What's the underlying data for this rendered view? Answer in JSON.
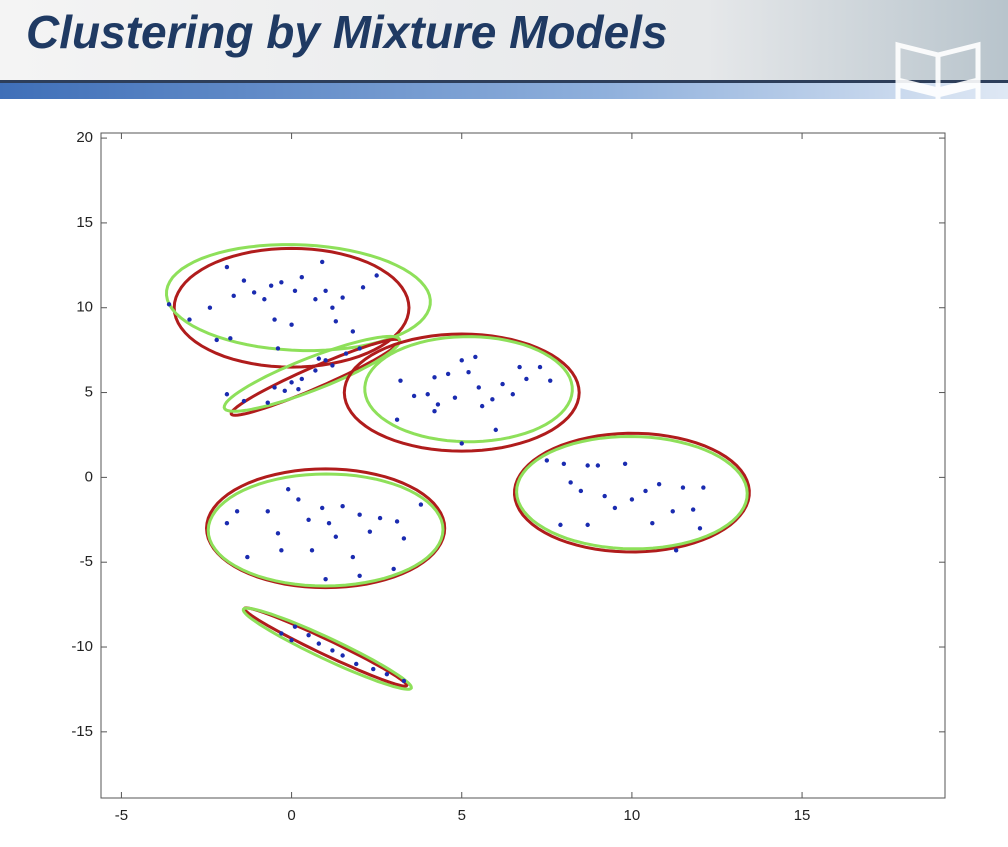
{
  "header": {
    "title": "Clustering by Mixture Models"
  },
  "chart_data": {
    "type": "scatter",
    "xlim": [
      -5.6,
      19.2
    ],
    "ylim": [
      -18.9,
      20.3
    ],
    "xticks": [
      -5,
      0,
      5,
      10,
      15
    ],
    "yticks": [
      -15,
      -10,
      -5,
      0,
      5,
      10,
      15,
      20
    ],
    "color": "#1a2bb0",
    "x": [
      -3.6,
      -3,
      -2.4,
      -1.9,
      -1.7,
      -1.4,
      -1.1,
      -0.8,
      -0.6,
      -0.5,
      -0.3,
      0,
      0.1,
      0.3,
      0.7,
      0.9,
      1,
      1.2,
      1.3,
      1.5,
      1.8,
      2.1,
      2.5,
      -2.2,
      -1.8,
      -0.4,
      -1.9,
      -1.4,
      -0.7,
      -0.5,
      -0.2,
      0,
      0.2,
      0.3,
      0.7,
      0.8,
      1,
      1.2,
      1.6,
      2,
      3.1,
      3.2,
      3.6,
      4,
      4.2,
      4.2,
      4.3,
      4.6,
      4.8,
      5,
      5.2,
      5.4,
      5.5,
      5.6,
      5.9,
      6,
      6.2,
      6.5,
      6.7,
      6.9,
      7.3,
      7.6,
      5,
      7.5,
      8,
      8.2,
      8.5,
      8.7,
      8.7,
      9,
      9.2,
      9.5,
      9.8,
      10,
      10.4,
      10.6,
      10.8,
      11.2,
      11.3,
      11.5,
      11.8,
      12,
      12.1,
      7.9,
      -1.9,
      -1.6,
      -1.3,
      -0.7,
      -0.4,
      -0.3,
      -0.1,
      0.2,
      0.5,
      0.6,
      0.9,
      1.1,
      1.3,
      1.5,
      1.8,
      2,
      2.3,
      2.6,
      3.1,
      3.3,
      1,
      2,
      3,
      3.8,
      -0.3,
      0,
      0.1,
      0.5,
      0.8,
      1.2,
      1.5,
      1.9,
      2.4,
      2.8,
      3.3
    ],
    "values": [
      10.2,
      9.3,
      10,
      12.4,
      10.7,
      11.6,
      10.9,
      10.5,
      11.3,
      9.3,
      11.5,
      9,
      11,
      11.8,
      10.5,
      12.7,
      11,
      10,
      9.2,
      10.6,
      8.6,
      11.2,
      11.9,
      8.1,
      8.2,
      7.6,
      4.9,
      4.5,
      4.4,
      5.3,
      5.1,
      5.6,
      5.2,
      5.8,
      6.3,
      7,
      6.9,
      6.6,
      7.3,
      7.6,
      3.4,
      5.7,
      4.8,
      4.9,
      5.9,
      3.9,
      4.3,
      6.1,
      4.7,
      6.9,
      6.2,
      7.1,
      5.3,
      4.2,
      4.6,
      2.8,
      5.5,
      4.9,
      6.5,
      5.8,
      6.5,
      5.7,
      2,
      1,
      0.8,
      -0.3,
      -0.8,
      0.7,
      -2.8,
      0.7,
      -1.1,
      -1.8,
      0.8,
      -1.3,
      -0.8,
      -2.7,
      -0.4,
      -2,
      -4.3,
      -0.6,
      -1.9,
      -3,
      -0.6,
      -2.8,
      -2.7,
      -2,
      -4.7,
      -2,
      -3.3,
      -4.3,
      -0.7,
      -1.3,
      -2.5,
      -4.3,
      -1.8,
      -2.7,
      -3.5,
      -1.7,
      -4.7,
      -2.2,
      -3.2,
      -2.4,
      -2.6,
      -3.6,
      -6,
      -5.8,
      -5.4,
      -1.6,
      -9.2,
      -9.6,
      -8.8,
      -9.3,
      -9.8,
      -10.2,
      -10.5,
      -11,
      -11.3,
      -11.6,
      -12
    ],
    "ellipses": [
      {
        "color": "#b01c1c",
        "cx": 0,
        "cy": 10,
        "rx": 3.45,
        "ry": 3.5,
        "angle": 0
      },
      {
        "color": "#8ee05a",
        "cx": 0.2,
        "cy": 10.6,
        "rx": 3.9,
        "ry": 3.1,
        "angle": -10
      },
      {
        "color": "#b01c1c",
        "cx": 0.7,
        "cy": 5.9,
        "rx": 3.3,
        "ry": 0.5,
        "angle": 42
      },
      {
        "color": "#8ee05a",
        "cx": 0.6,
        "cy": 6.1,
        "rx": 3.3,
        "ry": 0.8,
        "angle": 40
      },
      {
        "color": "#b01c1c",
        "cx": 5,
        "cy": 5,
        "rx": 3.45,
        "ry": 3.45,
        "angle": -5
      },
      {
        "color": "#8ee05a",
        "cx": 5.2,
        "cy": 5.2,
        "rx": 3.05,
        "ry": 3.1,
        "angle": 8
      },
      {
        "color": "#b01c1c",
        "cx": 10,
        "cy": -0.9,
        "rx": 3.45,
        "ry": 3.5,
        "angle": -8
      },
      {
        "color": "#8ee05a",
        "cx": 10,
        "cy": -0.9,
        "rx": 3.4,
        "ry": 3.3,
        "angle": -20
      },
      {
        "color": "#b01c1c",
        "cx": 1,
        "cy": -3,
        "rx": 3.5,
        "ry": 3.5,
        "angle": 0
      },
      {
        "color": "#8ee05a",
        "cx": 1,
        "cy": -3.1,
        "rx": 3.45,
        "ry": 3.3,
        "angle": 5
      },
      {
        "color": "#b01c1c",
        "cx": 1,
        "cy": -10,
        "rx": 3.3,
        "ry": 0.35,
        "angle": -44
      },
      {
        "color": "#8ee05a",
        "cx": 1.05,
        "cy": -10.1,
        "rx": 3.4,
        "ry": 0.5,
        "angle": -44
      }
    ]
  }
}
